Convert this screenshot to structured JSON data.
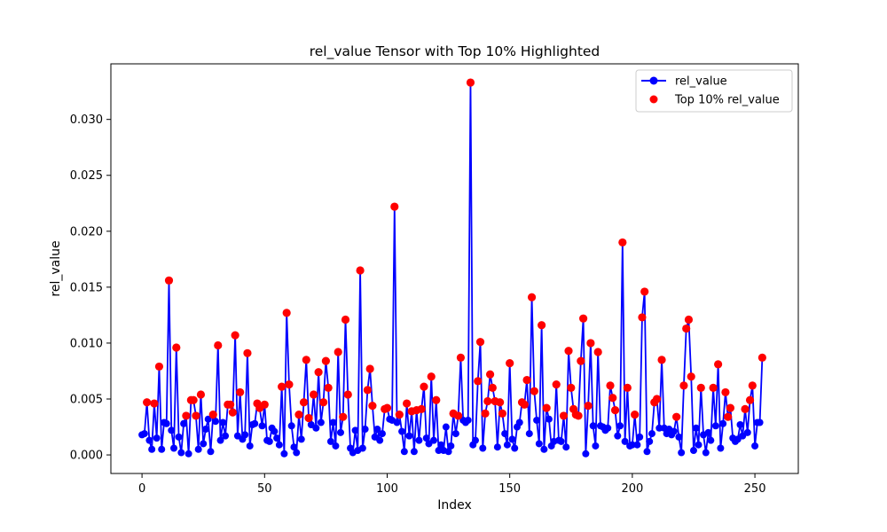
{
  "chart_data": {
    "type": "line",
    "title": "rel_value Tensor with Top 10% Highlighted",
    "xlabel": "Index",
    "ylabel": "rel_value",
    "xlim": [
      -12.7,
      267.7
    ],
    "ylim": [
      -0.00166,
      0.03497
    ],
    "xticks": [
      0,
      50,
      100,
      150,
      200,
      250
    ],
    "xtick_labels": [
      "0",
      "50",
      "100",
      "150",
      "200",
      "250"
    ],
    "yticks": [
      0,
      0.005,
      0.01,
      0.015,
      0.02,
      0.025,
      0.03
    ],
    "ytick_labels": [
      "0.000",
      "0.005",
      "0.010",
      "0.015",
      "0.020",
      "0.025",
      "0.030"
    ],
    "grid": false,
    "legend_position": "top-right",
    "series": [
      {
        "name": "rel_value",
        "color": "#0000ff",
        "marker": "circle",
        "x_start": 0,
        "values": [
          0.0018,
          0.0019,
          0.0047,
          0.0013,
          0.0005,
          0.0046,
          0.0015,
          0.0079,
          0.0005,
          0.0029,
          0.0028,
          0.0156,
          0.0022,
          0.0006,
          0.0096,
          0.0016,
          0.0002,
          0.0028,
          0.0035,
          0.0001,
          0.0049,
          0.0049,
          0.0035,
          0.0005,
          0.0054,
          0.001,
          0.0023,
          0.0032,
          0.0003,
          0.0036,
          0.003,
          0.0098,
          0.0013,
          0.0029,
          0.0017,
          0.0045,
          0.0045,
          0.0038,
          0.0107,
          0.0017,
          0.0056,
          0.0014,
          0.0018,
          0.0091,
          0.0008,
          0.0027,
          0.0028,
          0.0046,
          0.0042,
          0.0026,
          0.0045,
          0.0013,
          0.0012,
          0.0024,
          0.0021,
          0.0015,
          0.0009,
          0.0061,
          0.0001,
          0.0127,
          0.0063,
          0.0026,
          0.0007,
          0.0002,
          0.0036,
          0.0014,
          0.0047,
          0.0085,
          0.0033,
          0.0027,
          0.0054,
          0.0024,
          0.0074,
          0.0029,
          0.0047,
          0.0084,
          0.006,
          0.0012,
          0.0029,
          0.0008,
          0.0092,
          0.002,
          0.0034,
          0.0121,
          0.0054,
          0.0006,
          0.0002,
          0.0022,
          0.0004,
          0.0165,
          0.0006,
          0.0023,
          0.0058,
          0.0077,
          0.0044,
          0.0016,
          0.0023,
          0.0013,
          0.0019,
          0.0041,
          0.0042,
          0.0032,
          0.0031,
          0.0222,
          0.0029,
          0.0036,
          0.0021,
          0.0003,
          0.0046,
          0.0017,
          0.0039,
          0.0003,
          0.004,
          0.0013,
          0.0041,
          0.0061,
          0.0015,
          0.001,
          0.007,
          0.0013,
          0.0049,
          0.0004,
          0.0009,
          0.0004,
          0.0025,
          0.0003,
          0.0008,
          0.0037,
          0.0019,
          0.0035,
          0.0087,
          0.0031,
          0.0029,
          0.0031,
          0.0333,
          0.0009,
          0.0013,
          0.0066,
          0.0101,
          0.0006,
          0.0037,
          0.0048,
          0.0072,
          0.006,
          0.0048,
          0.0007,
          0.0047,
          0.0037,
          0.0019,
          0.0009,
          0.0082,
          0.0014,
          0.0006,
          0.0025,
          0.0029,
          0.0047,
          0.0045,
          0.0067,
          0.0019,
          0.0141,
          0.0057,
          0.0031,
          0.001,
          0.0116,
          0.0005,
          0.0042,
          0.0032,
          0.0008,
          0.0012,
          0.0063,
          0.0013,
          0.0012,
          0.0035,
          0.0007,
          0.0093,
          0.006,
          0.0041,
          0.0036,
          0.0035,
          0.0084,
          0.0122,
          0.0001,
          0.0044,
          0.01,
          0.0026,
          0.0008,
          0.0092,
          0.0026,
          0.0025,
          0.0022,
          0.0024,
          0.0062,
          0.0051,
          0.004,
          0.0017,
          0.0026,
          0.019,
          0.0012,
          0.006,
          0.0008,
          0.0009,
          0.0036,
          0.0009,
          0.0016,
          0.0123,
          0.0146,
          0.0003,
          0.0012,
          0.0019,
          0.0047,
          0.005,
          0.0024,
          0.0085,
          0.0024,
          0.0019,
          0.0023,
          0.0018,
          0.0021,
          0.0034,
          0.0016,
          0.0002,
          0.0062,
          0.0113,
          0.0121,
          0.007,
          0.0004,
          0.0024,
          0.0009,
          0.006,
          0.0018,
          0.0002,
          0.002,
          0.0013,
          0.006,
          0.0026,
          0.0081,
          0.0006,
          0.0028,
          0.0056,
          0.0034,
          0.0042,
          0.0015,
          0.0012,
          0.0014,
          0.0027,
          0.0017,
          0.0041,
          0.002,
          0.0049,
          0.0062,
          0.0008,
          0.0029,
          0.0029,
          0.0087
        ]
      },
      {
        "name": "Top 10% rel_value",
        "color": "#ff0000",
        "marker": "circle",
        "kind": "scatter",
        "threshold": 0.0033
      }
    ]
  }
}
